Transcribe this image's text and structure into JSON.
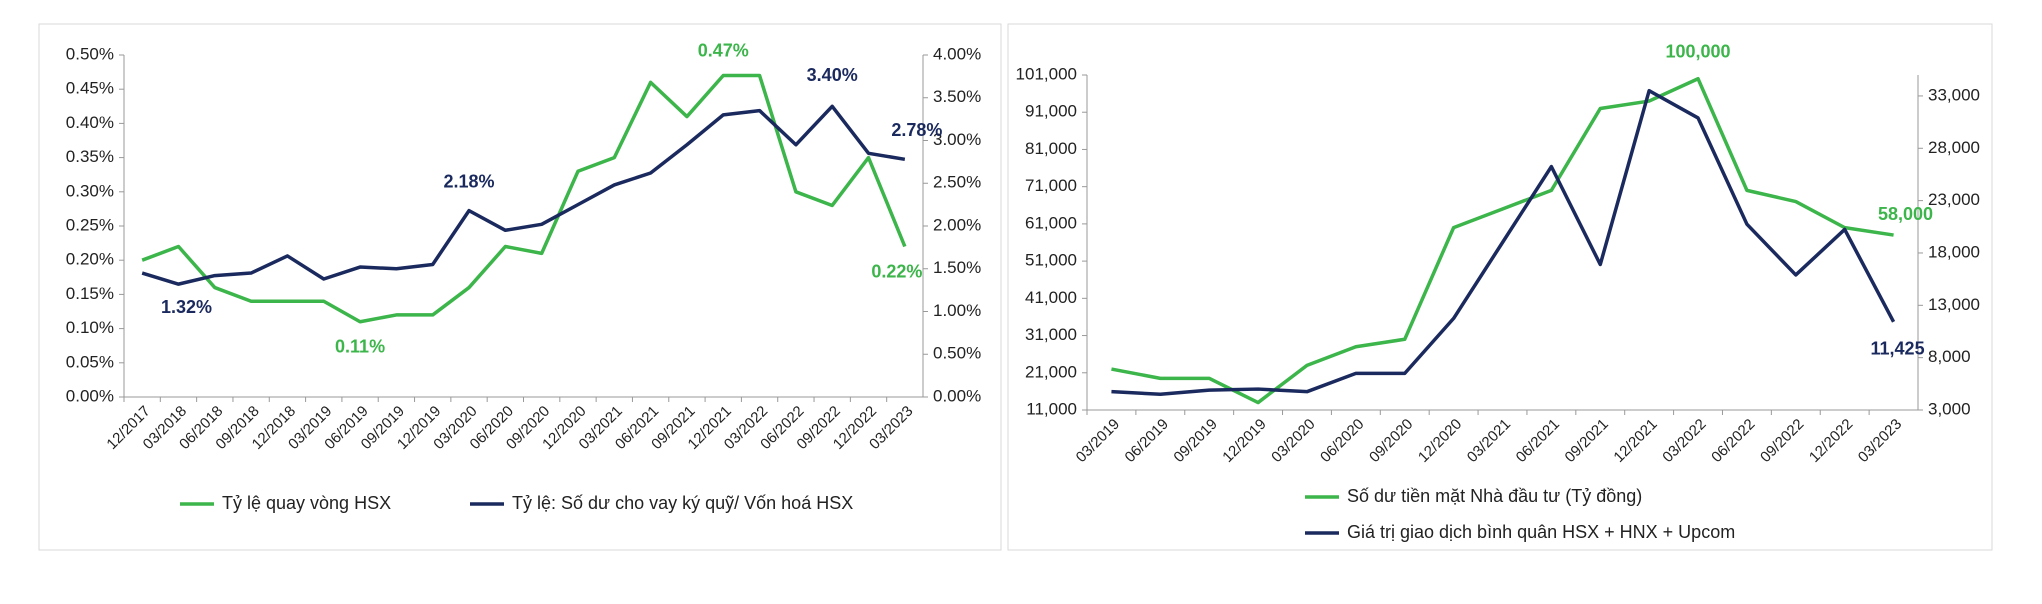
{
  "chart_data": [
    {
      "type": "line",
      "categories": [
        "12/2017",
        "03/2018",
        "06/2018",
        "09/2018",
        "12/2018",
        "03/2019",
        "06/2019",
        "09/2019",
        "12/2019",
        "03/2020",
        "06/2020",
        "09/2020",
        "12/2020",
        "03/2021",
        "06/2021",
        "09/2021",
        "12/2021",
        "03/2022",
        "06/2022",
        "09/2022",
        "12/2022",
        "03/2023"
      ],
      "series": [
        {
          "name": "Tỷ lệ quay vòng  HSX",
          "color": "#3cb54a",
          "axis": "y",
          "values": [
            0.2,
            0.22,
            0.16,
            0.14,
            0.14,
            0.14,
            0.11,
            0.12,
            0.12,
            0.16,
            0.22,
            0.21,
            0.33,
            0.35,
            0.46,
            0.41,
            0.47,
            0.47,
            0.3,
            0.28,
            0.35,
            0.22
          ],
          "value_labels": [
            null,
            null,
            null,
            null,
            null,
            null,
            "0.11%",
            null,
            null,
            null,
            null,
            null,
            null,
            null,
            null,
            null,
            "0.47%",
            null,
            null,
            null,
            null,
            "0.22%"
          ]
        },
        {
          "name": "Tỷ lệ: Số dư cho vay ký quỹ/ Vốn hoá HSX",
          "color": "#1b2a5e",
          "axis": "y2",
          "values": [
            1.45,
            1.32,
            1.42,
            1.45,
            1.65,
            1.38,
            1.52,
            1.5,
            1.55,
            2.18,
            1.95,
            2.02,
            2.25,
            2.48,
            2.62,
            2.95,
            3.3,
            3.35,
            2.95,
            3.4,
            2.85,
            2.78
          ],
          "value_labels": [
            null,
            "1.32%",
            null,
            null,
            null,
            null,
            null,
            null,
            null,
            "2.18%",
            null,
            null,
            null,
            null,
            null,
            null,
            null,
            null,
            null,
            "3.40%",
            null,
            "2.78%"
          ]
        }
      ],
      "ylim": [
        0,
        0.5
      ],
      "yticks": [
        {
          "value": 0,
          "label": "0.00%"
        },
        {
          "value": 0.05,
          "label": "0.05%"
        },
        {
          "value": 0.1,
          "label": "0.10%"
        },
        {
          "value": 0.15,
          "label": "0.15%"
        },
        {
          "value": 0.2,
          "label": "0.20%"
        },
        {
          "value": 0.25,
          "label": "0.25%"
        },
        {
          "value": 0.3,
          "label": "0.30%"
        },
        {
          "value": 0.35,
          "label": "0.35%"
        },
        {
          "value": 0.4,
          "label": "0.40%"
        },
        {
          "value": 0.45,
          "label": "0.45%"
        },
        {
          "value": 0.5,
          "label": "0.50%"
        }
      ],
      "y2lim": [
        0,
        4
      ],
      "y2ticks": [
        {
          "value": 0,
          "label": "0.00%"
        },
        {
          "value": 0.5,
          "label": "0.50%"
        },
        {
          "value": 1,
          "label": "1.00%"
        },
        {
          "value": 1.5,
          "label": "1.50%"
        },
        {
          "value": 2,
          "label": "2.00%"
        },
        {
          "value": 2.5,
          "label": "2.50%"
        },
        {
          "value": 3,
          "label": "3.00%"
        },
        {
          "value": 3.5,
          "label": "3.50%"
        },
        {
          "value": 4,
          "label": "4.00%"
        }
      ],
      "legend": "bottom",
      "grid": false
    },
    {
      "type": "line",
      "categories": [
        "03/2019",
        "06/2019",
        "09/2019",
        "12/2019",
        "03/2020",
        "06/2020",
        "09/2020",
        "12/2020",
        "03/2021",
        "06/2021",
        "09/2021",
        "12/2021",
        "03/2022",
        "06/2022",
        "09/2022",
        "12/2022",
        "03/2023"
      ],
      "series": [
        {
          "name": "Số dư tiền mặt Nhà đầu tư (Tỷ đồng)",
          "color": "#3cb54a",
          "axis": "y",
          "values": [
            22000,
            19500,
            19500,
            13000,
            23000,
            28000,
            30000,
            60000,
            65000,
            70000,
            92000,
            94000,
            100000,
            70000,
            67000,
            60000,
            58000
          ],
          "value_labels": [
            null,
            null,
            null,
            null,
            null,
            null,
            null,
            null,
            null,
            null,
            null,
            null,
            "100,000",
            null,
            null,
            null,
            "58,000"
          ]
        },
        {
          "name": "Giá trị giao dịch bình quân HSX + HNX  + Upcom",
          "color": "#1b2a5e",
          "axis": "y2",
          "values": [
            4750,
            4500,
            4900,
            5000,
            4750,
            6500,
            6500,
            11750,
            19000,
            26250,
            16900,
            33500,
            30900,
            20750,
            15900,
            20250,
            11425
          ],
          "value_labels": [
            null,
            null,
            null,
            null,
            null,
            null,
            null,
            null,
            null,
            null,
            null,
            null,
            null,
            null,
            null,
            null,
            "11,425"
          ]
        }
      ],
      "ylim": [
        11000,
        101000
      ],
      "yticks": [
        {
          "value": 11000,
          "label": "11,000"
        },
        {
          "value": 21000,
          "label": "21,000"
        },
        {
          "value": 31000,
          "label": "31,000"
        },
        {
          "value": 41000,
          "label": "41,000"
        },
        {
          "value": 51000,
          "label": "51,000"
        },
        {
          "value": 61000,
          "label": "61,000"
        },
        {
          "value": 71000,
          "label": "71,000"
        },
        {
          "value": 81000,
          "label": "81,000"
        },
        {
          "value": 91000,
          "label": "91,000"
        },
        {
          "value": 101000,
          "label": "101,000"
        }
      ],
      "y2lim": [
        3000,
        35000
      ],
      "y2ticks": [
        {
          "value": 3000,
          "label": "3,000"
        },
        {
          "value": 8000,
          "label": "8,000"
        },
        {
          "value": 13000,
          "label": "13,000"
        },
        {
          "value": 18000,
          "label": "18,000"
        },
        {
          "value": 23000,
          "label": "23,000"
        },
        {
          "value": 28000,
          "label": "28,000"
        },
        {
          "value": 33000,
          "label": "33,000"
        }
      ],
      "legend": "bottom",
      "grid": false
    }
  ]
}
